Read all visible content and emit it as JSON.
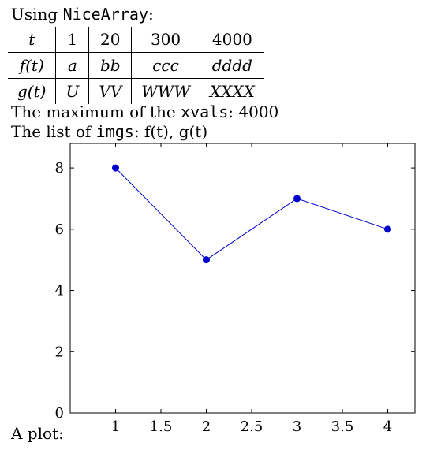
{
  "intro": {
    "prefix": "Using ",
    "code": "NiceArray",
    "suffix": ":"
  },
  "table": {
    "header": [
      "t",
      "1",
      "20",
      "300",
      "4000"
    ],
    "rows": [
      [
        "f(t)",
        "a",
        "bb",
        "ccc",
        "dddd"
      ],
      [
        "g(t)",
        "U",
        "VV",
        "WWW",
        "XXXX"
      ]
    ]
  },
  "max_line": {
    "prefix": "The maximum of the ",
    "code": "xvals",
    "suffix": ": 4000"
  },
  "imgs_line": {
    "prefix": "The list of ",
    "code": "imgs",
    "suffix": ": f(t), g(t)"
  },
  "plot_caption": "A plot:",
  "chart_data": {
    "type": "line",
    "x": [
      1,
      2,
      3,
      4
    ],
    "y": [
      8,
      5,
      7,
      6
    ],
    "xlim": [
      0.5,
      4.3
    ],
    "ylim": [
      0,
      8.8
    ],
    "xticks": [
      1,
      1.5,
      2,
      2.5,
      3,
      3.5,
      4
    ],
    "xtick_labels": [
      "1",
      "1.5",
      "2",
      "2.5",
      "3",
      "3.5",
      "4"
    ],
    "yticks": [
      0,
      2,
      4,
      6,
      8
    ],
    "ytick_labels": [
      "0",
      "2",
      "4",
      "6",
      "8"
    ],
    "series_color": "#0000cc",
    "grid": false,
    "title": "",
    "xlabel": "",
    "ylabel": ""
  }
}
